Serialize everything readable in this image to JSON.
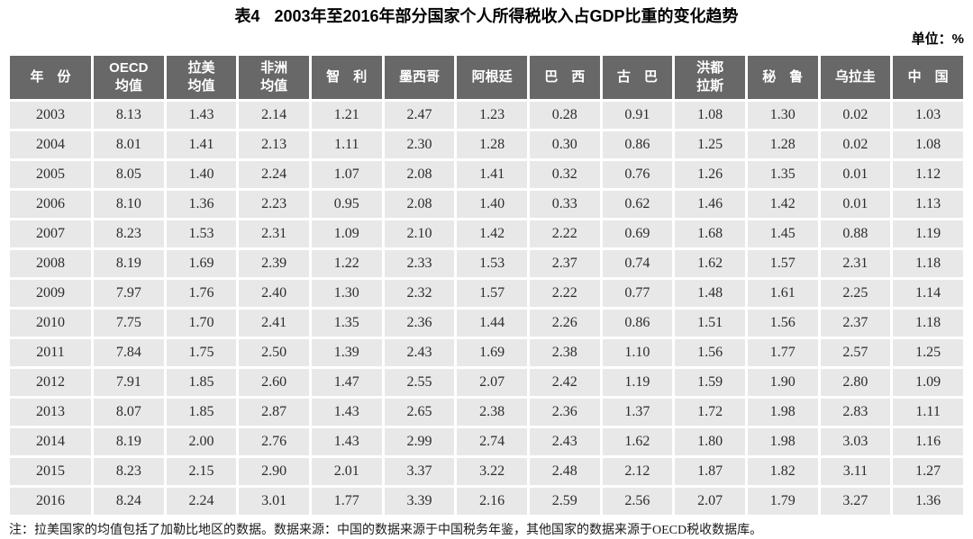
{
  "page": {
    "title_label": "表4",
    "title_text": "2003年至2016年部分国家个人所得税收入占GDP比重的变化趋势",
    "unit": "单位：%",
    "footnote": "注：拉美国家的均值包括了加勒比地区的数据。数据来源：中国的数据来源于中国税务年鉴，其他国家的数据来源于OECD税收数据库。"
  },
  "colors": {
    "header_bg": "#686868",
    "header_text": "#ffffff",
    "cell_bg": "#e8e8e8",
    "body_text": "#2d2d2d"
  },
  "chart_data": {
    "type": "table",
    "title": "表4 2003年至2016年部分国家个人所得税收入占GDP比重的变化趋势",
    "unit": "%",
    "columns": [
      "年　份",
      "OECD\n均值",
      "拉美\n均值",
      "非洲\n均值",
      "智　利",
      "墨西哥",
      "阿根廷",
      "巴　西",
      "古　巴",
      "洪都\n拉斯",
      "秘　鲁",
      "乌拉圭",
      "中　国"
    ],
    "rows": [
      [
        "2003",
        "8.13",
        "1.43",
        "2.14",
        "1.21",
        "2.47",
        "1.23",
        "0.28",
        "0.91",
        "1.08",
        "1.30",
        "0.02",
        "1.03"
      ],
      [
        "2004",
        "8.01",
        "1.41",
        "2.13",
        "1.11",
        "2.30",
        "1.28",
        "0.30",
        "0.86",
        "1.25",
        "1.28",
        "0.02",
        "1.08"
      ],
      [
        "2005",
        "8.05",
        "1.40",
        "2.24",
        "1.07",
        "2.08",
        "1.41",
        "0.32",
        "0.76",
        "1.26",
        "1.35",
        "0.01",
        "1.12"
      ],
      [
        "2006",
        "8.10",
        "1.36",
        "2.23",
        "0.95",
        "2.08",
        "1.40",
        "0.33",
        "0.62",
        "1.46",
        "1.42",
        "0.01",
        "1.13"
      ],
      [
        "2007",
        "8.23",
        "1.53",
        "2.31",
        "1.09",
        "2.10",
        "1.42",
        "2.22",
        "0.69",
        "1.68",
        "1.45",
        "0.88",
        "1.19"
      ],
      [
        "2008",
        "8.19",
        "1.69",
        "2.39",
        "1.22",
        "2.33",
        "1.53",
        "2.37",
        "0.74",
        "1.62",
        "1.57",
        "2.31",
        "1.18"
      ],
      [
        "2009",
        "7.97",
        "1.76",
        "2.40",
        "1.30",
        "2.32",
        "1.57",
        "2.22",
        "0.77",
        "1.48",
        "1.61",
        "2.25",
        "1.14"
      ],
      [
        "2010",
        "7.75",
        "1.70",
        "2.41",
        "1.35",
        "2.36",
        "1.44",
        "2.26",
        "0.86",
        "1.51",
        "1.56",
        "2.37",
        "1.18"
      ],
      [
        "2011",
        "7.84",
        "1.75",
        "2.50",
        "1.39",
        "2.43",
        "1.69",
        "2.38",
        "1.10",
        "1.56",
        "1.77",
        "2.57",
        "1.25"
      ],
      [
        "2012",
        "7.91",
        "1.85",
        "2.60",
        "1.47",
        "2.55",
        "2.07",
        "2.42",
        "1.19",
        "1.59",
        "1.90",
        "2.80",
        "1.09"
      ],
      [
        "2013",
        "8.07",
        "1.85",
        "2.87",
        "1.43",
        "2.65",
        "2.38",
        "2.36",
        "1.37",
        "1.72",
        "1.98",
        "2.83",
        "1.11"
      ],
      [
        "2014",
        "8.19",
        "2.00",
        "2.76",
        "1.43",
        "2.99",
        "2.74",
        "2.43",
        "1.62",
        "1.80",
        "1.98",
        "3.03",
        "1.16"
      ],
      [
        "2015",
        "8.23",
        "2.15",
        "2.90",
        "2.01",
        "3.37",
        "3.22",
        "2.48",
        "2.12",
        "1.87",
        "1.82",
        "3.11",
        "1.27"
      ],
      [
        "2016",
        "8.24",
        "2.24",
        "3.01",
        "1.77",
        "3.39",
        "2.16",
        "2.59",
        "2.56",
        "2.07",
        "1.79",
        "3.27",
        "1.36"
      ]
    ]
  }
}
